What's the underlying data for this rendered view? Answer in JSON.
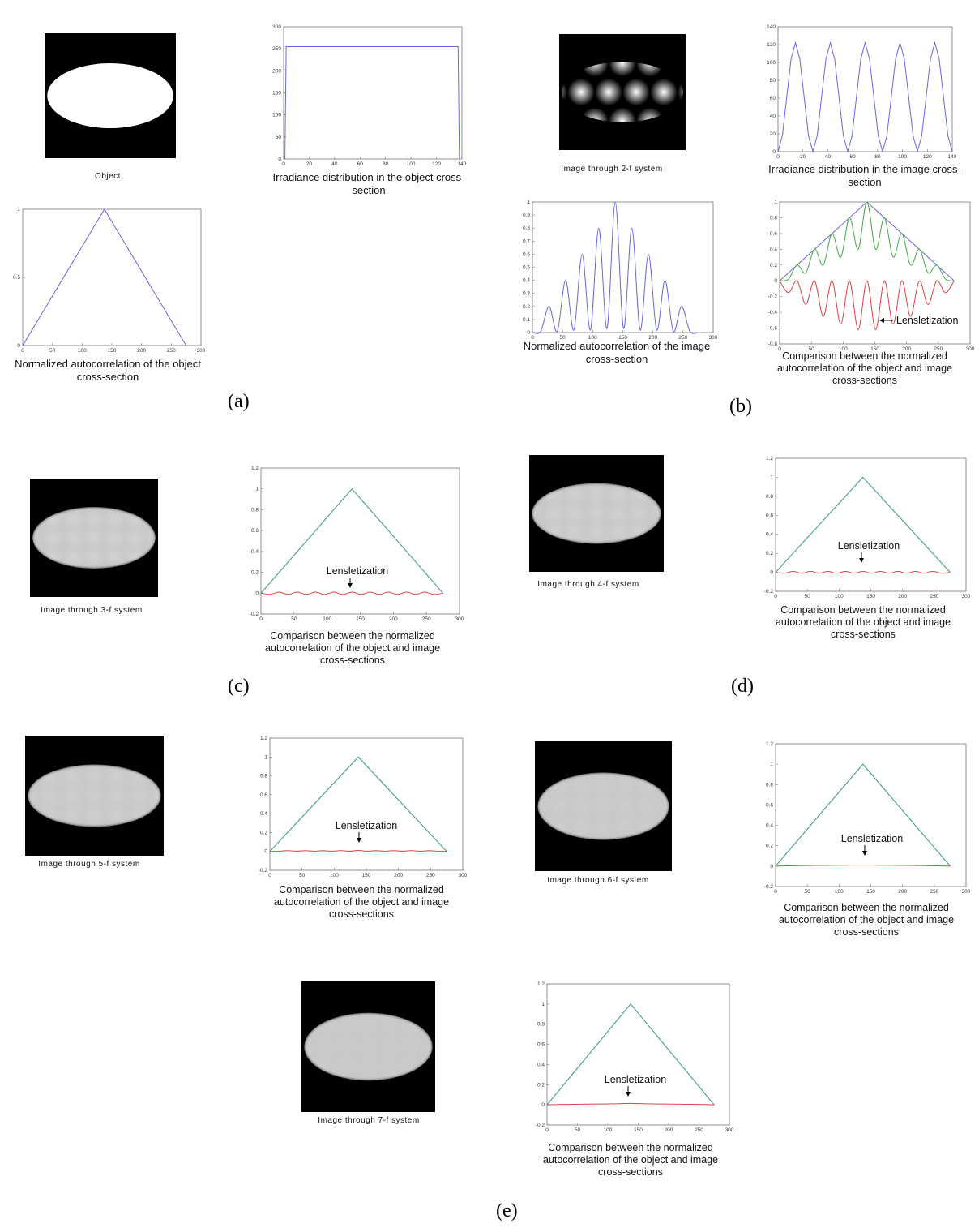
{
  "chart_data": [
    {
      "type": "image",
      "caption": "Object"
    },
    {
      "type": "line",
      "caption": "Irradiance distribution in the object cross-section",
      "xlim": [
        0,
        140
      ],
      "ylim": [
        0,
        300
      ],
      "xticks": [
        0,
        20,
        40,
        60,
        80,
        100,
        120,
        140
      ],
      "yticks": [
        0,
        50,
        100,
        150,
        200,
        250,
        300
      ],
      "series": [
        {
          "color": "#6666dd",
          "x": [
            1,
            2,
            137,
            138
          ],
          "values": [
            0,
            255,
            255,
            0
          ]
        }
      ]
    },
    {
      "type": "line",
      "caption": "Normalized autocorrelation of the object cross-section",
      "xlim": [
        0,
        300
      ],
      "ylim": [
        0,
        1
      ],
      "xticks": [
        0,
        50,
        100,
        150,
        200,
        250,
        300
      ],
      "yticks": [
        0,
        0.5,
        1
      ],
      "series": [
        {
          "color": "#6666dd",
          "x": [
            0,
            137.5,
            275
          ],
          "values": [
            0,
            1,
            0
          ]
        }
      ]
    },
    {
      "type": "image",
      "caption": "Image through 2-f system"
    },
    {
      "type": "line",
      "caption": "Irradiance distribution in the image cross-section",
      "xlim": [
        0,
        140
      ],
      "ylim": [
        0,
        140
      ],
      "xticks": [
        0,
        20,
        40,
        60,
        80,
        100,
        120,
        140
      ],
      "yticks": [
        0,
        20,
        40,
        60,
        80,
        100,
        120,
        140
      ],
      "series": [
        {
          "color": "#6666dd",
          "x": [
            0,
            3.5,
            7,
            10.5,
            14,
            17.5,
            21,
            24.5,
            28,
            31.5,
            35,
            38.5,
            42,
            45.5,
            49,
            52.5,
            56,
            59.5,
            63,
            66.5,
            70,
            73.5,
            77,
            80.5,
            84,
            87.5,
            91,
            94.5,
            98,
            101.5,
            105,
            108.5,
            112,
            115.5,
            119,
            122.5,
            126,
            129.5,
            133,
            136.5,
            140
          ],
          "values": [
            0,
            18,
            61,
            104,
            122,
            104,
            61,
            18,
            0,
            18,
            61,
            104,
            122,
            104,
            61,
            18,
            0,
            18,
            61,
            104,
            122,
            104,
            61,
            18,
            0,
            18,
            61,
            104,
            122,
            104,
            61,
            18,
            0,
            18,
            61,
            104,
            122,
            104,
            61,
            18,
            0
          ]
        }
      ]
    },
    {
      "type": "line",
      "caption": "Normalized autocorrelation of the image cross-section",
      "xlim": [
        0,
        300
      ],
      "ylim": [
        0,
        1
      ],
      "xticks": [
        0,
        50,
        100,
        150,
        200,
        250,
        300
      ],
      "yticks": [
        0,
        0.1,
        0.2,
        0.3,
        0.4,
        0.5,
        0.6,
        0.7,
        0.8,
        0.9,
        1
      ],
      "series": [
        {
          "color": "#6666dd",
          "smooth": true,
          "x": [
            0,
            13.75,
            27.5,
            41.25,
            55,
            68.75,
            82.5,
            96.25,
            110,
            123.75,
            137.5,
            151.25,
            165,
            178.75,
            192.5,
            206.25,
            220,
            233.75,
            247.5,
            261.25,
            275
          ],
          "values": [
            0,
            0.01,
            0.2,
            0.01,
            0.4,
            0.02,
            0.6,
            0.02,
            0.8,
            0.03,
            1,
            0.03,
            0.8,
            0.02,
            0.6,
            0.02,
            0.4,
            0.01,
            0.2,
            0.01,
            0
          ]
        }
      ]
    },
    {
      "type": "line",
      "caption": "Comparison between the normalized autocorrelation of the object and image cross-sections",
      "annotation": "Lensletization",
      "xlim": [
        0,
        300
      ],
      "ylim": [
        -0.8,
        1
      ],
      "xticks": [
        0,
        50,
        100,
        150,
        200,
        250,
        300
      ],
      "yticks": [
        -0.8,
        -0.6,
        -0.4,
        -0.2,
        0,
        0.2,
        0.4,
        0.6,
        0.8,
        1
      ],
      "series": [
        {
          "color": "#6666dd",
          "x": [
            0,
            137.5,
            275
          ],
          "values": [
            0,
            1,
            0
          ]
        },
        {
          "color": "#44aa44",
          "smooth": true,
          "x": [
            0,
            13.75,
            27.5,
            41.25,
            55,
            68.75,
            82.5,
            96.25,
            110,
            123.75,
            137.5,
            151.25,
            165,
            178.75,
            192.5,
            206.25,
            220,
            233.75,
            247.5,
            261.25,
            275
          ],
          "values": [
            0,
            0.02,
            0.2,
            0.1,
            0.4,
            0.2,
            0.6,
            0.3,
            0.8,
            0.4,
            1,
            0.4,
            0.8,
            0.3,
            0.6,
            0.2,
            0.4,
            0.1,
            0.2,
            0.02,
            0
          ]
        },
        {
          "color": "#dd4444",
          "smooth": true,
          "x": [
            0,
            13.75,
            27.5,
            41.25,
            55,
            68.75,
            82.5,
            96.25,
            110,
            123.75,
            137.5,
            151.25,
            165,
            178.75,
            192.5,
            206.25,
            220,
            233.75,
            247.5,
            261.25,
            275
          ],
          "values": [
            0,
            -0.15,
            0,
            -0.3,
            0,
            -0.45,
            0,
            -0.55,
            0,
            -0.62,
            0,
            -0.62,
            0,
            -0.55,
            0,
            -0.45,
            0,
            -0.3,
            0,
            -0.15,
            0
          ]
        }
      ]
    },
    {
      "type": "image",
      "caption": "Image through 3-f system"
    },
    {
      "type": "line",
      "caption": "Comparison between the normalized autocorrelation of the object and image cross-sections",
      "annotation": "Lensletization",
      "xlim": [
        0,
        300
      ],
      "ylim": [
        -0.2,
        1.2
      ],
      "xticks": [
        0,
        50,
        100,
        150,
        200,
        250,
        300
      ],
      "yticks": [
        -0.2,
        0,
        0.2,
        0.4,
        0.6,
        0.8,
        1,
        1.2
      ],
      "series": [
        {
          "color": "#6666dd",
          "x": [
            0,
            137.5,
            275
          ],
          "values": [
            0,
            1,
            0
          ]
        },
        {
          "color": "#44aa88",
          "x": [
            0,
            137.5,
            275
          ],
          "values": [
            0,
            1,
            0
          ]
        },
        {
          "color": "#dd4444",
          "smooth": true,
          "x": [
            0,
            13.75,
            27.5,
            41.25,
            55,
            68.75,
            82.5,
            96.25,
            110,
            123.75,
            137.5,
            151.25,
            165,
            178.75,
            192.5,
            206.25,
            220,
            233.75,
            247.5,
            261.25,
            275
          ],
          "values": [
            0,
            -0.012,
            0.01,
            -0.012,
            0.01,
            -0.012,
            0.01,
            -0.012,
            0.01,
            -0.012,
            0.01,
            -0.012,
            0.01,
            -0.012,
            0.01,
            -0.012,
            0.01,
            -0.012,
            0.01,
            -0.012,
            0
          ]
        }
      ]
    },
    {
      "type": "image",
      "caption": "Image through 4-f system"
    },
    {
      "type": "line",
      "caption": "Comparison between the normalized autocorrelation of the object and image cross-sections",
      "annotation": "Lensletization",
      "xlim": [
        0,
        300
      ],
      "ylim": [
        -0.2,
        1.2
      ],
      "xticks": [
        0,
        50,
        100,
        150,
        200,
        250,
        300
      ],
      "yticks": [
        -0.2,
        0,
        0.2,
        0.4,
        0.6,
        0.8,
        1,
        1.2
      ],
      "series": [
        {
          "color": "#6666dd",
          "x": [
            0,
            137.5,
            275
          ],
          "values": [
            0,
            1,
            0
          ]
        },
        {
          "color": "#44aa88",
          "x": [
            0,
            137.5,
            275
          ],
          "values": [
            0,
            1,
            0
          ]
        },
        {
          "color": "#dd4444",
          "smooth": true,
          "x": [
            0,
            13.75,
            27.5,
            41.25,
            55,
            68.75,
            82.5,
            96.25,
            110,
            123.75,
            137.5,
            151.25,
            165,
            178.75,
            192.5,
            206.25,
            220,
            233.75,
            247.5,
            261.25,
            275
          ],
          "values": [
            0,
            -0.01,
            0.01,
            -0.01,
            0.01,
            -0.01,
            0.01,
            -0.01,
            0.01,
            -0.01,
            0.01,
            -0.01,
            0.01,
            -0.01,
            0.01,
            -0.01,
            0.01,
            -0.01,
            0.01,
            -0.01,
            0
          ]
        }
      ]
    },
    {
      "type": "image",
      "caption": "Image through 5-f system"
    },
    {
      "type": "line",
      "caption": "Comparison between the normalized autocorrelation of the object and image cross-sections",
      "annotation": "Lensletization",
      "xlim": [
        0,
        300
      ],
      "ylim": [
        -0.2,
        1.2
      ],
      "xticks": [
        0,
        50,
        100,
        150,
        200,
        250,
        300
      ],
      "yticks": [
        -0.2,
        0,
        0.2,
        0.4,
        0.6,
        0.8,
        1,
        1.2
      ],
      "series": [
        {
          "color": "#6666dd",
          "x": [
            0,
            137.5,
            275
          ],
          "values": [
            0,
            1,
            0
          ]
        },
        {
          "color": "#44aa88",
          "x": [
            0,
            137.5,
            275
          ],
          "values": [
            0,
            1,
            0
          ]
        },
        {
          "color": "#dd4444",
          "smooth": true,
          "x": [
            0,
            13.75,
            27.5,
            41.25,
            55,
            68.75,
            82.5,
            96.25,
            110,
            123.75,
            137.5,
            151.25,
            165,
            178.75,
            192.5,
            206.25,
            220,
            233.75,
            247.5,
            261.25,
            275
          ],
          "values": [
            0,
            0.002,
            0.008,
            0.002,
            0.008,
            0.002,
            0.008,
            0.002,
            0.008,
            0.002,
            0.01,
            0.002,
            0.008,
            0.002,
            0.008,
            0.002,
            0.008,
            0.002,
            0.008,
            0.002,
            0
          ]
        }
      ]
    },
    {
      "type": "image",
      "caption": "Image through 6-f system"
    },
    {
      "type": "line",
      "caption": "Comparison between the normalized autocorrelation of the object and image cross-sections",
      "annotation": "Lensletization",
      "xlim": [
        0,
        300
      ],
      "ylim": [
        -0.2,
        1.2
      ],
      "xticks": [
        0,
        50,
        100,
        150,
        200,
        250,
        300
      ],
      "yticks": [
        -0.2,
        0,
        0.2,
        0.4,
        0.6,
        0.8,
        1,
        1.2
      ],
      "series": [
        {
          "color": "#6666dd",
          "x": [
            0,
            137.5,
            275
          ],
          "values": [
            0,
            1,
            0
          ]
        },
        {
          "color": "#44aa88",
          "x": [
            0,
            137.5,
            275
          ],
          "values": [
            0,
            1,
            0
          ]
        },
        {
          "color": "#dd4444",
          "smooth": true,
          "x": [
            0,
            27.5,
            55,
            82.5,
            110,
            137.5,
            165,
            192.5,
            220,
            247.5,
            275
          ],
          "values": [
            0,
            0.004,
            0.006,
            0.008,
            0.009,
            0.01,
            0.009,
            0.008,
            0.006,
            0.004,
            0
          ]
        }
      ]
    },
    {
      "type": "image",
      "caption": "Image through 7-f system"
    },
    {
      "type": "line",
      "caption": "Comparison between the normalized autocorrelation of the object and image cross-sections",
      "annotation": "Lensletization",
      "xlim": [
        0,
        300
      ],
      "ylim": [
        -0.2,
        1.2
      ],
      "xticks": [
        0,
        50,
        100,
        150,
        200,
        250,
        300
      ],
      "yticks": [
        -0.2,
        0,
        0.2,
        0.4,
        0.6,
        0.8,
        1,
        1.2
      ],
      "series": [
        {
          "color": "#6666dd",
          "x": [
            0,
            137.5,
            275
          ],
          "values": [
            0,
            1,
            0
          ]
        },
        {
          "color": "#44aa88",
          "x": [
            0,
            137.5,
            275
          ],
          "values": [
            0,
            1,
            0
          ]
        },
        {
          "color": "#dd4444",
          "smooth": true,
          "x": [
            0,
            27.5,
            55,
            82.5,
            110,
            137.5,
            165,
            192.5,
            220,
            247.5,
            275
          ],
          "values": [
            0,
            0.004,
            0.006,
            0.008,
            0.01,
            0.014,
            0.01,
            0.008,
            0.006,
            0.004,
            0
          ]
        }
      ]
    }
  ],
  "panel_labels": [
    "(a)",
    "(b)",
    "(c)",
    "(d)",
    "(e)"
  ]
}
